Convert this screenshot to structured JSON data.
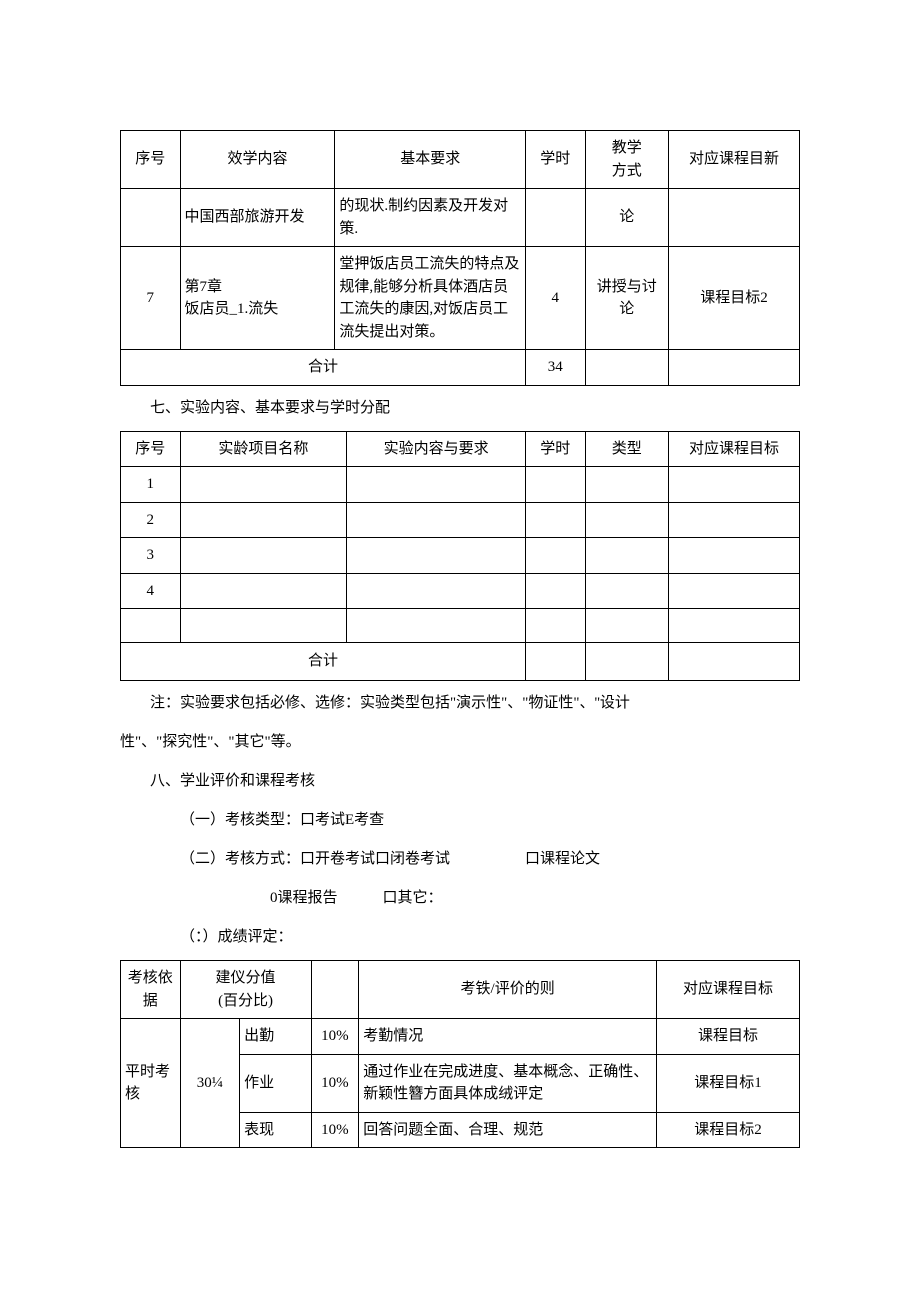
{
  "table1": {
    "headers": [
      "序号",
      "效学内容",
      "基本要求",
      "学时",
      "教学\n方式",
      "对应课程目新"
    ],
    "col_widths": [
      "50px",
      "130px",
      "160px",
      "50px",
      "70px",
      "110px"
    ],
    "rows": [
      {
        "seq": "",
        "content": "中国西部旅游开发",
        "req": "的现状.制约因素及开发对策.",
        "hours": "",
        "mode": "论",
        "target": ""
      },
      {
        "seq": "7",
        "content": "第7章\n饭店员_1.流失",
        "req": "堂押饭店员工流失的特点及规律,能够分析具体酒店员工流失的康因,对饭店员工流失提出对策。",
        "hours": "4",
        "mode": "讲授与讨论",
        "target": "课程目标2"
      }
    ],
    "total_label": "合计",
    "total_hours": "34"
  },
  "section7_title": "七、实验内容、基本要求与学时分配",
  "table2": {
    "headers": [
      "序号",
      "实龄项目名称",
      "实验内容与要求",
      "学时",
      "类型",
      "对应课程目标"
    ],
    "col_widths": [
      "50px",
      "140px",
      "150px",
      "50px",
      "70px",
      "110px"
    ],
    "rows": [
      {
        "seq": "1"
      },
      {
        "seq": "2"
      },
      {
        "seq": "3"
      },
      {
        "seq": "4"
      },
      {
        "seq": ""
      }
    ],
    "total_label": "合计"
  },
  "note_line1": "注：实验要求包括必修、选修：实验类型包括\"演示性\"、\"物证性\"、''设计",
  "note_line2": "性\"、\"探究性\"、\"其它\"等。",
  "section8_title": "八、学业评价和课程考核",
  "item8_1": "（一）考核类型：口考试E考查",
  "item8_2": "（二）考核方式：口开卷考试口闭卷考试　　　　　口课程论文",
  "item8_2b": "0课程报告　　　口其它：",
  "item8_3": "（：）成绩评定：",
  "table3": {
    "headers": [
      "考核依据",
      "建仪分值\n(百分比)",
      "",
      "考铁/评价的则",
      "对应课程目标"
    ],
    "col_widths": [
      "50px",
      "50px",
      "60px",
      "40px",
      "250px",
      "120px"
    ],
    "group_label": "平时考核",
    "group_pct": "30¼",
    "rows": [
      {
        "item": "出勤",
        "pct": "10%",
        "rule": "考勤情况",
        "target": "课程目标"
      },
      {
        "item": "作业",
        "pct": "10%",
        "rule": "通过作业在完成进度、基本概念、正确性、新颖性簪方面具体成绒评定",
        "target": "课程目标1"
      },
      {
        "item": "表现",
        "pct": "10%",
        "rule": "回答问题全面、合理、规范",
        "target": "课程目标2"
      }
    ]
  }
}
